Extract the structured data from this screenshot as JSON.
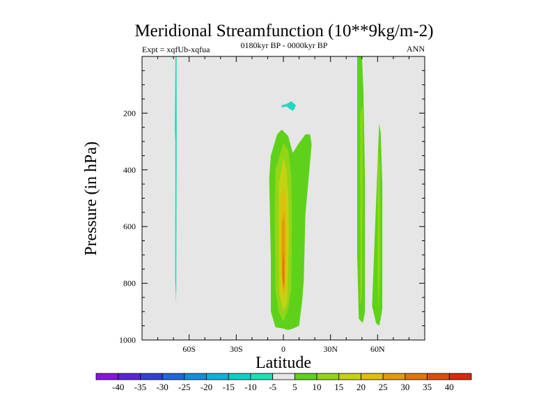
{
  "chart_data": {
    "type": "contour",
    "title": "Meridional Streamfunction (10**9kg/m-2)",
    "subtitle": "0180kyr BP - 0000kyr BP",
    "left_string": "Expt = xqfUb-xqfua",
    "right_string": "ANN",
    "xlabel": "Latitude",
    "ylabel": "Pressure (in hPa)",
    "xlim": [
      -90,
      90
    ],
    "ylim": [
      1000,
      0
    ],
    "x_ticks": [
      {
        "value": -60,
        "label": "60S"
      },
      {
        "value": -30,
        "label": "30S"
      },
      {
        "value": 0,
        "label": "0"
      },
      {
        "value": 30,
        "label": "30N"
      },
      {
        "value": 60,
        "label": "60N"
      }
    ],
    "y_ticks": [
      {
        "value": 200,
        "label": "200"
      },
      {
        "value": 400,
        "label": "400"
      },
      {
        "value": 600,
        "label": "600"
      },
      {
        "value": 800,
        "label": "800"
      },
      {
        "value": 1000,
        "label": "1000"
      }
    ],
    "background_color": "#e6e6e6",
    "colorbar": {
      "levels": [
        "-40",
        "-35",
        "-30",
        "-25",
        "-20",
        "-15",
        "-10",
        "-5",
        "5",
        "10",
        "15",
        "20",
        "25",
        "30",
        "35",
        "40"
      ],
      "colors": [
        "#8a13e0",
        "#5a23d8",
        "#2f41d8",
        "#1c68dc",
        "#138edd",
        "#0fb0dd",
        "#10cdc8",
        "#1ee0b4",
        "#e6e6e6",
        "#5ed21a",
        "#93d516",
        "#c3d213",
        "#e2bd0e",
        "#e59a0b",
        "#e37409",
        "#e04d08",
        "#d82a0a"
      ]
    },
    "features": [
      {
        "name": "southern-negative-cell",
        "class": "-10 to -5",
        "color": "#20d8c0",
        "lat": [
          -68.6,
          -68.0,
          -67.9,
          -68.2,
          -68.3,
          -68.6,
          -68.9,
          -68.8,
          -69.1,
          -68.7
        ],
        "p": [
          0,
          0,
          300,
          800,
          870,
          830,
          790,
          300,
          260,
          0
        ]
      },
      {
        "name": "upper-tropical-negative-patch",
        "class": "-10 to -5",
        "color": "#20d8c0",
        "lat": [
          -1.0,
          2.0,
          5.0,
          8.0,
          7.0,
          6.0,
          4.0,
          2.0,
          -1.0
        ],
        "p": [
          172,
          168,
          158,
          172,
          185,
          192,
          185,
          176,
          180
        ]
      },
      {
        "name": "tropical-cell-5",
        "class": "5 to 10",
        "color": "#5ed21a",
        "lat": [
          -8.0,
          -4.0,
          -1.0,
          3.0,
          6.0,
          10.0,
          14.0,
          17.0,
          18.0,
          14.0,
          13.0,
          12.0,
          10.0,
          6.0,
          3.0,
          0.0,
          -5.0,
          -8.0,
          -8.0,
          -9.0
        ],
        "p": [
          350,
          275,
          258,
          280,
          340,
          305,
          275,
          275,
          310,
          560,
          790,
          860,
          950,
          960,
          965,
          960,
          955,
          900,
          720,
          430
        ]
      },
      {
        "name": "tropical-cell-10",
        "class": "10 to 15",
        "color": "#93d516",
        "lat": [
          -5.0,
          0.0,
          3.0,
          5.0,
          5.5,
          5.0,
          3.0,
          0.0,
          -3.0,
          -5.0,
          -5.5
        ],
        "p": [
          400,
          305,
          330,
          420,
          560,
          820,
          890,
          935,
          900,
          820,
          550
        ]
      },
      {
        "name": "tropical-cell-15",
        "class": "15 to 20",
        "color": "#c3d213",
        "lat": [
          -3.0,
          0.0,
          2.0,
          3.0,
          3.5,
          2.5,
          0.0,
          -2.5,
          -3.0
        ],
        "p": [
          450,
          360,
          400,
          480,
          620,
          870,
          895,
          840,
          640
        ]
      },
      {
        "name": "tropical-cell-20",
        "class": "20 to 25",
        "color": "#e2bd0e",
        "lat": [
          -1.5,
          0.0,
          1.5,
          2.0,
          2.0,
          1.0,
          0.0,
          -1.5,
          -2.0
        ],
        "p": [
          500,
          460,
          500,
          600,
          720,
          825,
          850,
          800,
          650
        ]
      },
      {
        "name": "tropical-cell-25",
        "class": "25 to 30",
        "color": "#e59a0b",
        "lat": [
          -1.0,
          0.5,
          1.0,
          1.0,
          0.0,
          -1.0
        ],
        "p": [
          585,
          550,
          620,
          800,
          830,
          760
        ]
      },
      {
        "name": "tropical-cell-30",
        "class": "30 to 35",
        "color": "#e37409",
        "lat": [
          0.0,
          0.5,
          0.5,
          0.0,
          -0.5,
          -0.5
        ],
        "p": [
          690,
          720,
          790,
          810,
          790,
          730
        ]
      },
      {
        "name": "midlat-cell-a-5",
        "class": "5 to 10",
        "color": "#5ed21a",
        "lat": [
          47.0,
          50.0,
          51.0,
          52.0,
          52.0,
          51.0,
          50.5,
          48.0,
          47.0,
          47.0
        ],
        "p": [
          0,
          0,
          120,
          450,
          900,
          930,
          940,
          925,
          700,
          200
        ]
      },
      {
        "name": "midlat-cell-a-10",
        "class": "10 to 15",
        "color": "#93d516",
        "lat": [
          49.0,
          50.5,
          50.5,
          50.0,
          49.0,
          49.0
        ],
        "p": [
          200,
          175,
          450,
          850,
          880,
          600
        ]
      },
      {
        "name": "midlat-cell-b-5",
        "class": "5 to 10",
        "color": "#5ed21a",
        "lat": [
          61.0,
          62.0,
          63.0,
          63.0,
          62.0,
          61.0,
          59.0,
          56.5,
          58.0,
          60.0
        ],
        "p": [
          235,
          270,
          450,
          890,
          925,
          950,
          940,
          880,
          660,
          380
        ]
      },
      {
        "name": "midlat-cell-b-10",
        "class": "10 to 15",
        "color": "#93d516",
        "lat": [
          60.5,
          61.5,
          61.5,
          60.5,
          60.0,
          60.0
        ],
        "p": [
          330,
          400,
          760,
          895,
          760,
          480
        ]
      }
    ]
  }
}
